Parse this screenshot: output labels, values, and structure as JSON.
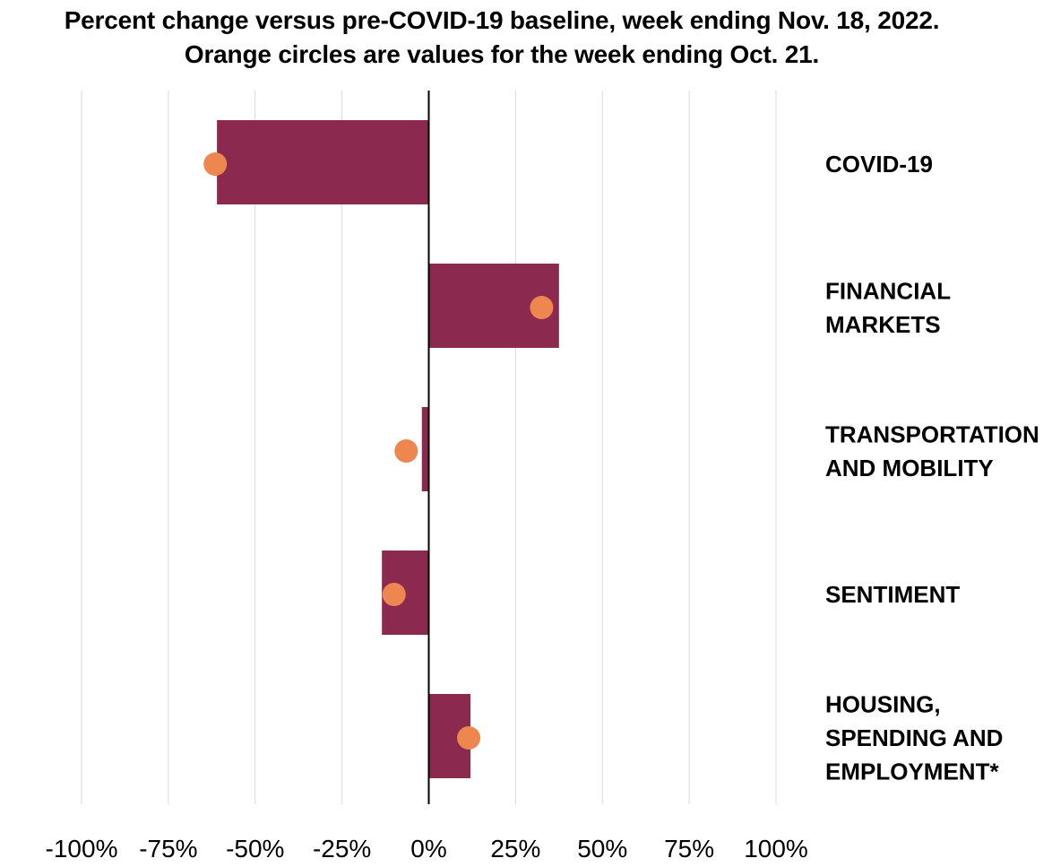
{
  "chart_data": {
    "type": "bar",
    "orientation": "horizontal",
    "title": "Percent change versus pre-COVID-19 baseline, week ending Nov. 18, 2022.",
    "subtitle": "Orange circles are values for the week ending Oct. 21.",
    "categories": [
      [
        "COVID-19"
      ],
      [
        "FINANCIAL",
        "MARKETS"
      ],
      [
        "TRANSPORTATION",
        "AND MOBILITY"
      ],
      [
        "SENTIMENT"
      ],
      [
        "HOUSING,",
        "SPENDING AND",
        "EMPLOYMENT*"
      ]
    ],
    "series": [
      {
        "name": "Week ending Nov. 18, 2022",
        "mark": "bar",
        "color": "#8B294F",
        "values": [
          -61,
          37.5,
          -2,
          -13.5,
          12
        ]
      },
      {
        "name": "Week ending Oct. 21",
        "mark": "circle",
        "color": "#EE8650",
        "values": [
          -61.5,
          32.5,
          -6.5,
          -10,
          11.5
        ]
      }
    ],
    "xlim": [
      -100,
      100
    ],
    "xticks": [
      -100,
      -75,
      -50,
      -25,
      0,
      25,
      50,
      75,
      100
    ],
    "xtick_labels": [
      "-100%",
      "-75%",
      "-50%",
      "-25%",
      "0%",
      "25%",
      "50%",
      "75%",
      "100%"
    ],
    "grid": true,
    "gridline_color": "#D9D9D9",
    "axis_color": "#000000"
  }
}
